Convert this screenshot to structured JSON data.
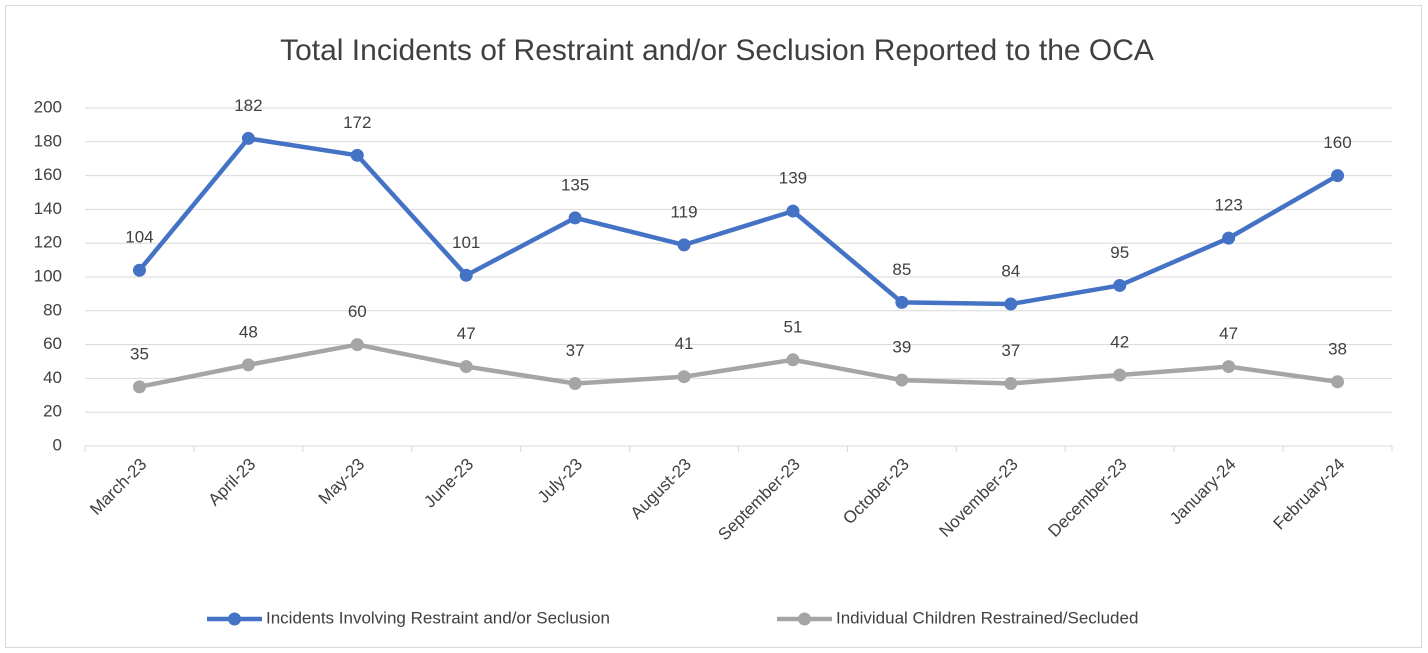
{
  "chart_data": {
    "type": "line",
    "title": "Total Incidents of Restraint and/or Seclusion Reported to the OCA",
    "categories": [
      "March-23",
      "April-23",
      "May-23",
      "June-23",
      "July-23",
      "August-23",
      "September-23",
      "October-23",
      "November-23",
      "December-23",
      "January-24",
      "February-24"
    ],
    "series": [
      {
        "name": "Incidents Involving Restraint and/or Seclusion",
        "color": "#4472c4",
        "values": [
          104,
          182,
          172,
          101,
          135,
          119,
          139,
          85,
          84,
          95,
          123,
          160
        ]
      },
      {
        "name": "Individual Children Restrained/Secluded",
        "color": "#a5a5a5",
        "values": [
          35,
          48,
          60,
          47,
          37,
          41,
          51,
          39,
          37,
          42,
          47,
          38
        ]
      }
    ],
    "ylim": [
      0,
      200
    ],
    "yticks": [
      0,
      20,
      40,
      60,
      80,
      100,
      120,
      140,
      160,
      180,
      200
    ],
    "grid": true,
    "legend": "bottom"
  }
}
